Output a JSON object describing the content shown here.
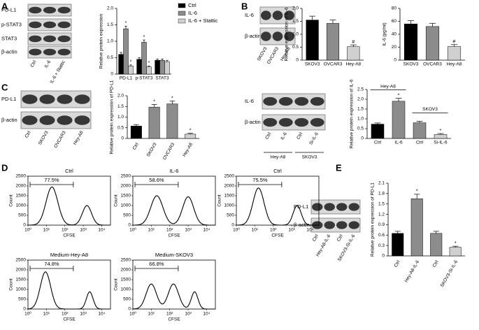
{
  "panels": [
    "A",
    "B",
    "C",
    "D",
    "E"
  ],
  "blots": [
    {
      "rows": [
        "PD-L1",
        "p-STAT3",
        "STAT3",
        "β-actin"
      ],
      "lanes": [
        "Ctrl",
        "IL-6",
        "IL-6 + Stattic"
      ]
    },
    {
      "rows": [
        "IL-6",
        "β-actin"
      ],
      "lanes": [
        "SKOV3",
        "OVCAR3",
        "Hey-A8"
      ]
    },
    {
      "rows": [
        "PD-L1",
        "β-actin"
      ],
      "lanes": [
        "Ctrl",
        "SKOV3",
        "OVCAR3",
        "Hey-A8"
      ]
    },
    {
      "rows": [
        "IL-6",
        "β-actin"
      ],
      "lanes": [
        "Ctrl",
        "IL-6",
        "Ctrl",
        "Si-IL-6"
      ],
      "groups": [
        "Hey-A8",
        "SKOV3"
      ]
    },
    {
      "rows": [
        "PD-L1",
        "β-actin"
      ],
      "lanes": [
        "Ctrl",
        "Hey-A8-IL-6",
        "Ctrl",
        "SKOV3-Si-IL-6"
      ]
    }
  ],
  "chart_data": [
    {
      "type": "bar",
      "ylabel": "Relative protein expression",
      "categories": [
        "PD-L1",
        "p-STAT3",
        "STAT3"
      ],
      "ylim": [
        0,
        2.0
      ],
      "yticks": [
        0,
        0.5,
        {
          "value": 1,
          "label": "1.0"
        },
        1.5,
        {
          "value": 2,
          "label": "2.0"
        }
      ],
      "legend": "top-right",
      "series": [
        {
          "name": "Ctrl",
          "color": "#000000",
          "values": [
            0.6,
            0.45,
            0.42
          ],
          "errors": [
            0.06,
            0.05,
            0.04
          ],
          "value_annotations": [
            null,
            null,
            null
          ]
        },
        {
          "name": "IL-6",
          "color": "#8c8c8c",
          "values": [
            1.38,
            0.97,
            0.42
          ],
          "errors": [
            0.08,
            0.07,
            0.04
          ],
          "value_annotations": [
            "*",
            "*",
            null
          ]
        },
        {
          "name": "IL-6 + Stattic",
          "color": "#d0d0d0",
          "values": [
            0.25,
            0.22,
            0.38
          ],
          "errors": [
            0.03,
            0.03,
            0.04
          ],
          "value_annotations": [
            "*",
            "*",
            null
          ]
        }
      ]
    },
    {
      "type": "bar",
      "ylabel": "Relative expression of IL-6",
      "categories": [
        "SKOV3",
        "OVCAR3",
        "Hey-A8"
      ],
      "values": [
        1.55,
        1.42,
        0.52
      ],
      "errors": [
        0.15,
        0.13,
        0.07
      ],
      "colors": [
        "#000000",
        "#8c8c8c",
        "#d0d0d0"
      ],
      "value_annotations": [
        null,
        null,
        "#"
      ],
      "ylim": [
        0,
        2.0
      ],
      "yticks": [
        0,
        0.5,
        {
          "value": 1,
          "label": "1.0"
        },
        1.5,
        {
          "value": 2,
          "label": "2.0"
        }
      ]
    },
    {
      "type": "bar",
      "ylabel": "IL-6 (pg/ml)",
      "categories": [
        "SKOV3",
        "OVCAR3",
        "Hey-A8"
      ],
      "values": [
        56,
        52,
        21
      ],
      "errors": [
        5,
        5,
        3
      ],
      "colors": [
        "#000000",
        "#8c8c8c",
        "#d0d0d0"
      ],
      "value_annotations": [
        null,
        null,
        "#"
      ],
      "ylim": [
        0,
        80
      ],
      "yticks": [
        0,
        20,
        40,
        60,
        80
      ]
    },
    {
      "type": "bar",
      "ylabel": "Relative protein expression of PD-L1",
      "categories": [
        "Ctrl",
        "SKOV3",
        "OVCAR3",
        "Hey-A8"
      ],
      "values": [
        0.58,
        1.47,
        1.62,
        0.2
      ],
      "errors": [
        0.07,
        0.12,
        0.13,
        0.04
      ],
      "colors": [
        "#000000",
        "#8c8c8c",
        "#8c8c8c",
        "#d0d0d0"
      ],
      "value_annotations": [
        null,
        "*",
        "*",
        "*"
      ],
      "ylim": [
        0,
        2.0
      ],
      "yticks": [
        0,
        0.5,
        {
          "value": 1,
          "label": "1.0"
        },
        1.5,
        {
          "value": 2,
          "label": "2.0"
        }
      ]
    },
    {
      "type": "bar",
      "ylabel": "Relative protein expression of IL-6",
      "categories": [
        "Ctrl",
        "IL-6",
        "Ctrl",
        "Si-IL-6"
      ],
      "groups": [
        "Hey-A8",
        "SKOV3"
      ],
      "values": [
        0.73,
        1.9,
        0.8,
        0.2
      ],
      "errors": [
        0.06,
        0.15,
        0.08,
        0.05
      ],
      "colors": [
        "#000000",
        "#8c8c8c",
        "#8c8c8c",
        "#d0d0d0"
      ],
      "value_annotations": [
        null,
        "*",
        null,
        "*"
      ],
      "ylim": [
        0,
        2.5
      ],
      "yticks": [
        0,
        0.5,
        {
          "value": 1,
          "label": "1.0"
        },
        1.5,
        {
          "value": 2,
          "label": "2.0"
        },
        2.5
      ]
    },
    {
      "type": "bar",
      "ylabel": "Relative protein expression of PD-L1",
      "categories": [
        "Ctrl",
        "Hey-A8-IL-6",
        "Ctrl",
        "SKOV3-Si-IL-6"
      ],
      "values": [
        0.65,
        1.65,
        0.65,
        0.25
      ],
      "errors": [
        0.06,
        0.13,
        0.06,
        0.03
      ],
      "colors": [
        "#000000",
        "#8c8c8c",
        "#8c8c8c",
        "#d0d0d0"
      ],
      "value_annotations": [
        null,
        "*",
        null,
        "*"
      ],
      "ylim": [
        0,
        2.1
      ],
      "yticks": [
        0,
        0.3,
        0.6,
        0.9,
        1.2,
        1.5,
        1.8,
        2.1
      ]
    },
    {
      "type": "flow",
      "title": "Ctrl",
      "gate_label": "77.5%",
      "xlabel": "CFSE",
      "ylabel": "Count",
      "log_x": true,
      "ylim": [
        0,
        2500
      ],
      "yticks": [
        0,
        500,
        1000,
        1500,
        2000,
        2500
      ],
      "xlim": [
        1,
        30000
      ],
      "xticks": [
        {
          "value": 1,
          "label": "10⁰"
        },
        {
          "value": 10,
          "label": "10¹"
        },
        {
          "value": 100,
          "label": "10²"
        },
        {
          "value": 1000,
          "label": "10³"
        },
        {
          "value": 10000,
          "label": "10⁴"
        }
      ]
    },
    {
      "type": "flow",
      "title": "IL-6",
      "gate_label": "58.6%",
      "xlabel": "CFSE",
      "ylabel": "Count",
      "log_x": true,
      "ylim": [
        0,
        2500
      ],
      "yticks": [
        0,
        500,
        1000,
        1500,
        2000,
        2500
      ],
      "xlim": [
        1,
        30000
      ],
      "xticks": [
        {
          "value": 1,
          "label": "10⁰"
        },
        {
          "value": 10,
          "label": "10¹"
        },
        {
          "value": 100,
          "label": "10²"
        },
        {
          "value": 1000,
          "label": "10³"
        },
        {
          "value": 10000,
          "label": "10⁴"
        }
      ]
    },
    {
      "type": "flow",
      "title": "Ctrl",
      "gate_label": "75.5%",
      "xlabel": "CFSE",
      "ylabel": "Count",
      "log_x": true,
      "ylim": [
        0,
        2500
      ],
      "yticks": [
        0,
        500,
        1000,
        1500,
        2000,
        2500
      ],
      "xlim": [
        1,
        30000
      ],
      "xticks": [
        {
          "value": 1,
          "label": "10⁰"
        },
        {
          "value": 10,
          "label": "10¹"
        },
        {
          "value": 100,
          "label": "10²"
        },
        {
          "value": 1000,
          "label": "10³"
        },
        {
          "value": 10000,
          "label": "10⁴"
        }
      ]
    },
    {
      "type": "flow",
      "title": "Medium-Hey-A8",
      "gate_label": "74.8%",
      "xlabel": "CFSE",
      "ylabel": "Count",
      "log_x": true,
      "ylim": [
        0,
        2500
      ],
      "yticks": [
        0,
        500,
        1000,
        1500,
        2000,
        2500
      ],
      "xlim": [
        1,
        30000
      ],
      "xticks": [
        {
          "value": 1,
          "label": "10⁰"
        },
        {
          "value": 10,
          "label": "10¹"
        },
        {
          "value": 100,
          "label": "10²"
        },
        {
          "value": 1000,
          "label": "10³"
        },
        {
          "value": 10000,
          "label": "10⁴"
        }
      ]
    },
    {
      "type": "flow",
      "title": "Medium-SKOV3",
      "gate_label": "66.8%",
      "xlabel": "CFSE",
      "ylabel": "Count",
      "log_x": true,
      "ylim": [
        0,
        2500
      ],
      "yticks": [
        0,
        500,
        1000,
        1500,
        2000,
        2500
      ],
      "xlim": [
        1,
        30000
      ],
      "xticks": [
        {
          "value": 1,
          "label": "10⁰"
        },
        {
          "value": 10,
          "label": "10¹"
        },
        {
          "value": 100,
          "label": "10²"
        },
        {
          "value": 1000,
          "label": "10³"
        },
        {
          "value": 10000,
          "label": "10⁴"
        }
      ]
    }
  ]
}
